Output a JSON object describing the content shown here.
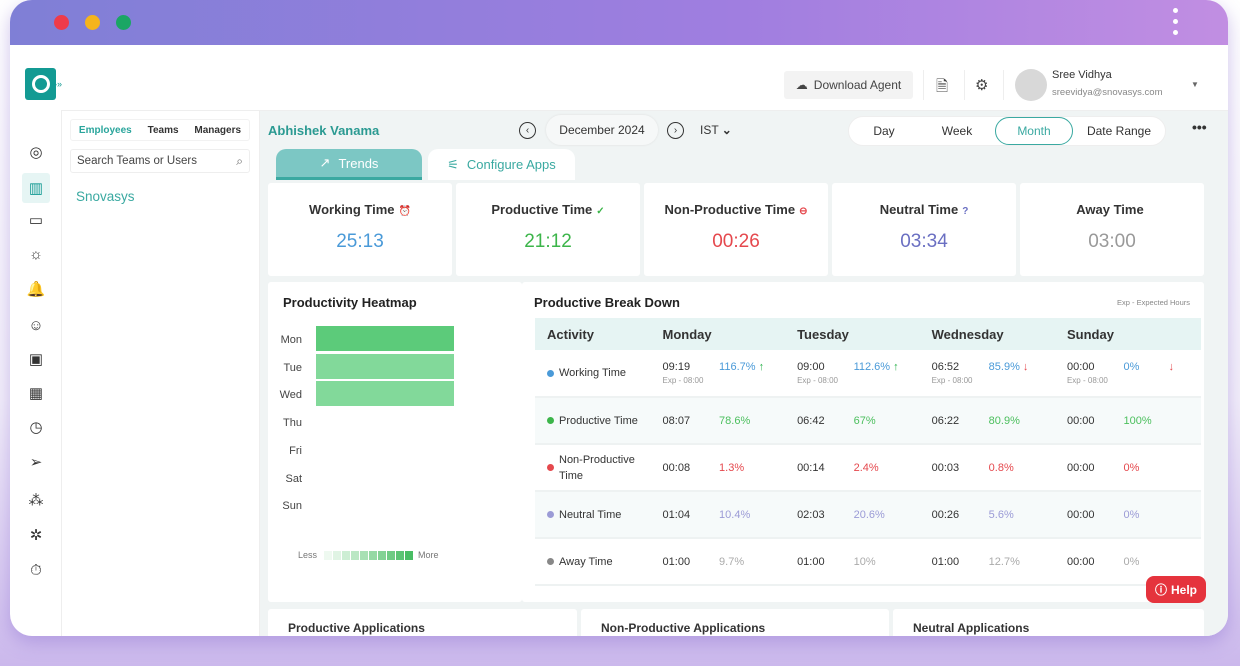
{
  "window": {
    "controls": [
      "close",
      "minimize",
      "maximize"
    ],
    "colors": {
      "close": "#ef3b4a",
      "minimize": "#f5b41c",
      "maximize": "#1aa664"
    }
  },
  "header": {
    "download_label": "Download Agent",
    "user_name": "Sree Vidhya",
    "user_email": "sreevidya@snovasys.com"
  },
  "left_panel": {
    "tabs": [
      "Employees",
      "Teams",
      "Managers"
    ],
    "search_placeholder": "Search Teams or Users",
    "org": "Snovasys"
  },
  "nav": [
    "target-icon",
    "chart-icon",
    "ticket-icon",
    "idea-icon",
    "alarm-icon",
    "user-icon",
    "briefcase-icon",
    "calendar-icon",
    "clock-icon",
    "send-icon",
    "org-icon",
    "team-icon",
    "timer-icon"
  ],
  "toolbar": {
    "person": "Abhishek Vanama",
    "date": "December 2024",
    "timezone": "IST",
    "ranges": [
      "Day",
      "Week",
      "Month",
      "Date Range"
    ],
    "selected_range": "Month",
    "more": "•••"
  },
  "tabs": {
    "trends": "Trends",
    "configure": "Configure Apps"
  },
  "stats": [
    {
      "label": "Working Time",
      "value": "25:13",
      "color": "#4a9ad8",
      "icon": "⏰"
    },
    {
      "label": "Productive Time",
      "value": "21:12",
      "color": "#3cb54a",
      "icon": "✓"
    },
    {
      "label": "Non-Productive Time",
      "value": "00:26",
      "color": "#e5484d",
      "icon": "⊖"
    },
    {
      "label": "Neutral Time",
      "value": "03:34",
      "color": "#6a6fc2",
      "icon": "?"
    },
    {
      "label": "Away Time",
      "value": "03:00",
      "color": "#999999",
      "icon": ""
    }
  ],
  "heatmap": {
    "title": "Productivity Heatmap",
    "days": [
      "Mon",
      "Tue",
      "Wed",
      "Thu",
      "Fri",
      "Sat",
      "Sun"
    ],
    "levels": [
      0.85,
      0.6,
      0.6,
      0,
      0,
      0,
      0
    ],
    "legend_less": "Less",
    "legend_more": "More"
  },
  "breakdown": {
    "title": "Productive Break Down",
    "note": "Exp - Expected Hours",
    "columns": [
      "Activity",
      "Monday",
      "Tuesday",
      "Wednesday",
      "Sunday"
    ],
    "rows": [
      {
        "activity": "Working Time",
        "dot": "#4a9ad8",
        "pct_color": "#4a9ad8",
        "cells": [
          {
            "time": "09:19",
            "pct": "116.7%",
            "trend": "↑",
            "trend_color": "#2bb24c",
            "exp": "Exp - 08:00"
          },
          {
            "time": "09:00",
            "pct": "112.6%",
            "trend": "↑",
            "trend_color": "#2bb24c",
            "exp": "Exp - 08:00"
          },
          {
            "time": "06:52",
            "pct": "85.9%",
            "trend": "↓",
            "trend_color": "#e5484d",
            "exp": "Exp - 08:00"
          },
          {
            "time": "00:00",
            "pct": "0%",
            "trend": "↓",
            "trend_color": "#e5484d",
            "exp": "Exp - 08:00"
          }
        ]
      },
      {
        "activity": "Productive Time",
        "dot": "#3cb54a",
        "pct_color": "#4bbf5d",
        "cells": [
          {
            "time": "08:07",
            "pct": "78.6%"
          },
          {
            "time": "06:42",
            "pct": "67%"
          },
          {
            "time": "06:22",
            "pct": "80.9%"
          },
          {
            "time": "00:00",
            "pct": "100%"
          }
        ]
      },
      {
        "activity": "Non-Productive Time",
        "dot": "#e5484d",
        "pct_color": "#e5484d",
        "cells": [
          {
            "time": "00:08",
            "pct": "1.3%"
          },
          {
            "time": "00:14",
            "pct": "2.4%"
          },
          {
            "time": "00:03",
            "pct": "0.8%"
          },
          {
            "time": "00:00",
            "pct": "0%"
          }
        ]
      },
      {
        "activity": "Neutral Time",
        "dot": "#9b9bd6",
        "pct_color": "#9b9bd6",
        "cells": [
          {
            "time": "01:04",
            "pct": "10.4%"
          },
          {
            "time": "02:03",
            "pct": "20.6%"
          },
          {
            "time": "00:26",
            "pct": "5.6%"
          },
          {
            "time": "00:00",
            "pct": "0%"
          }
        ]
      },
      {
        "activity": "Away Time",
        "dot": "#888888",
        "pct_color": "#aaaaaa",
        "cells": [
          {
            "time": "01:00",
            "pct": "9.7%"
          },
          {
            "time": "01:00",
            "pct": "10%"
          },
          {
            "time": "01:00",
            "pct": "12.7%"
          },
          {
            "time": "00:00",
            "pct": "0%"
          }
        ]
      }
    ]
  },
  "help": "Help",
  "bottom_cards": [
    "Productive Applications",
    "Non-Productive Applications",
    "Neutral Applications"
  ]
}
